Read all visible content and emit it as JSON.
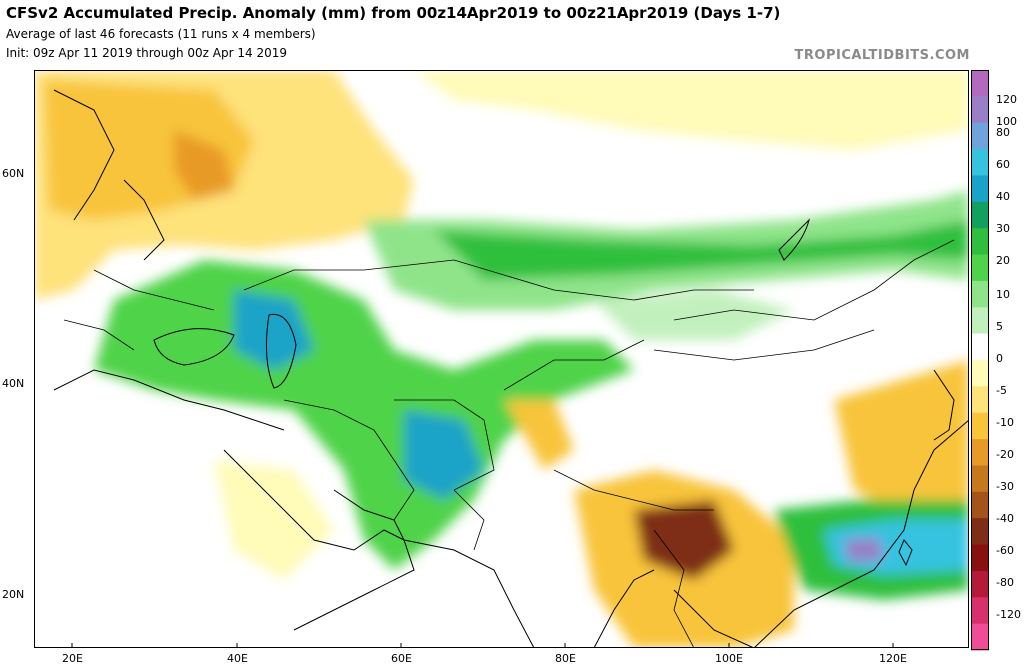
{
  "header": {
    "title": "CFSv2 Accumulated Precip. Anomaly (mm) from 00z14Apr2019 to 00z21Apr2019 (Days 1-7)",
    "subtitle1": "Average of last 46 forecasts (11 runs x 4 members)",
    "subtitle2": "Init: 09z Apr 11 2019 through 00z Apr 14 2019",
    "brand": "TROPICALTIDBITS.COM"
  },
  "axes": {
    "lat_labels": [
      "60N",
      "40N",
      "20N"
    ],
    "lon_labels": [
      "20E",
      "40E",
      "60E",
      "80E",
      "100E",
      "120E"
    ]
  },
  "colorbar": {
    "labels": [
      "120",
      "100",
      "80",
      "60",
      "40",
      "30",
      "20",
      "10",
      "5",
      "0",
      "-5",
      "-10",
      "-20",
      "-30",
      "-40",
      "-60",
      "-80",
      "-120"
    ],
    "colors": [
      "#b469c0",
      "#9a7fc8",
      "#6fa3dc",
      "#36c3e0",
      "#1aa3c8",
      "#12a060",
      "#2fbf3c",
      "#4fd34a",
      "#8fe48a",
      "#c2f0bd",
      "#ffffff",
      "#fffbb8",
      "#fee27a",
      "#f8c43a",
      "#e89a26",
      "#c8781c",
      "#a45418",
      "#7e2e14",
      "#8a1010",
      "#b41a3a",
      "#d8306c",
      "#f04d96"
    ]
  }
}
